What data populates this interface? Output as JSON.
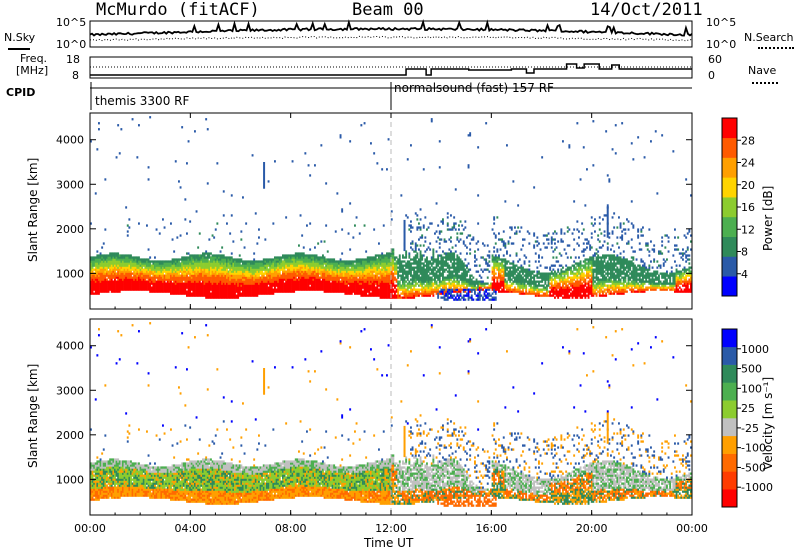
{
  "header": {
    "station": "McMurdo (fitACF)",
    "beam": "Beam 00",
    "date": "14/Oct/2011"
  },
  "side_labels": {
    "n_sky": "N.Sky",
    "n_search": "N.Search",
    "freq_line1": "Freq.",
    "freq_line2": "[MHz]",
    "nave": "Nave",
    "cpid": "CPID"
  },
  "cpid_segments": [
    {
      "label": "themis 3300 RF",
      "start_hour": 0
    },
    {
      "label": "normalsound (fast) 157 RF",
      "start_hour": 12
    }
  ],
  "noise_axis": {
    "left_ticks": [
      "10^5",
      "10^0"
    ],
    "right_ticks": [
      "10^5",
      "10^0"
    ]
  },
  "freq_axis": {
    "left_ticks": [
      "18",
      "8"
    ],
    "right_ticks": [
      "60",
      "0"
    ]
  },
  "colors": {
    "power_scale": [
      "#0000ff",
      "#2a5aa8",
      "#2f8a5a",
      "#4caf50",
      "#8ccc2f",
      "#ffd400",
      "#ff9f00",
      "#ff5a00",
      "#ff0000"
    ],
    "velocity_scale": [
      "#0000ff",
      "#2a5aa8",
      "#2f8a5a",
      "#4caf50",
      "#8ccc2f",
      "#c0c0c0",
      "#ff9f00",
      "#ff6a00",
      "#ff3c00",
      "#ff0000"
    ]
  },
  "chart_data": [
    {
      "type": "heatmap",
      "name": "power",
      "ylabel": "Slant Range [km]",
      "x_ticks": [
        "00:00",
        "04:00",
        "08:00",
        "12:00",
        "16:00",
        "20:00",
        "00:00"
      ],
      "y_ticks": [
        "1000",
        "2000",
        "3000",
        "4000"
      ],
      "ylim": [
        200,
        4600
      ],
      "colorbar_label": "Power [dB]",
      "colorbar_ticks": [
        "4",
        "8",
        "12",
        "16",
        "20",
        "24",
        "28"
      ]
    },
    {
      "type": "heatmap",
      "name": "velocity",
      "ylabel": "Slant Range [km]",
      "xlabel": "Time UT",
      "x_ticks": [
        "00:00",
        "04:00",
        "08:00",
        "12:00",
        "16:00",
        "20:00",
        "00:00"
      ],
      "y_ticks": [
        "1000",
        "2000",
        "3000",
        "4000"
      ],
      "ylim": [
        200,
        4600
      ],
      "colorbar_label": "Velocity [m s⁻¹]",
      "colorbar_ticks": [
        "1000",
        "500",
        "100",
        "25",
        "-25",
        "-100",
        "-500",
        "-1000"
      ]
    }
  ]
}
